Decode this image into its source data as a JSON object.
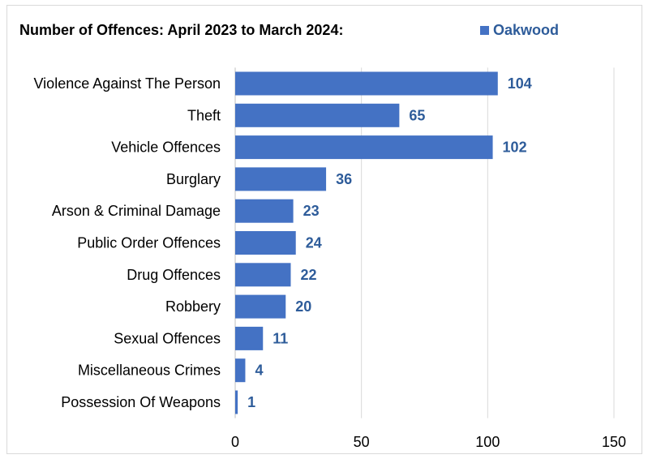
{
  "chart_data": {
    "type": "bar",
    "orientation": "horizontal",
    "title": "Number of Offences: April 2023 to March 2024:",
    "categories": [
      "Violence Against The Person",
      "Theft",
      "Vehicle Offences",
      "Burglary",
      "Arson & Criminal Damage",
      "Public Order Offences",
      "Drug Offences",
      "Robbery",
      "Sexual Offences",
      "Miscellaneous Crimes",
      "Possession Of Weapons"
    ],
    "series": [
      {
        "name": "Oakwood",
        "values": [
          104,
          65,
          102,
          36,
          23,
          24,
          22,
          20,
          11,
          4,
          1
        ]
      }
    ],
    "xlim": [
      0,
      150
    ],
    "xticks": [
      0,
      50,
      100,
      150
    ],
    "xlabel": "",
    "ylabel": "",
    "grid": true,
    "legend_position": "top-right",
    "data_labels": true,
    "colors": {
      "bar": "#4472c4",
      "data_label": "#2e5c9a",
      "gridline": "#d9d9d9",
      "axis_line": "#bfbfbf",
      "text": "#000000"
    }
  }
}
